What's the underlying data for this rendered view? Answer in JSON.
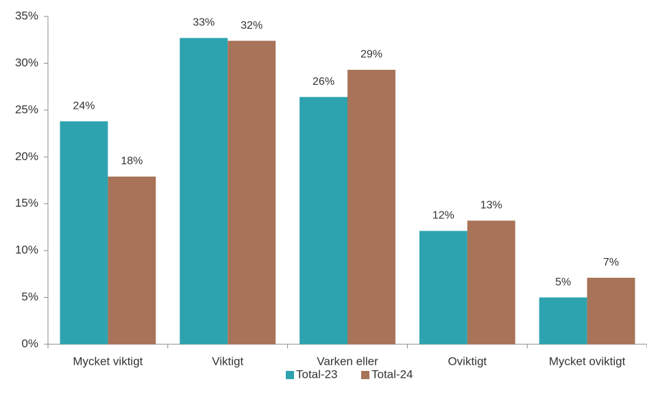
{
  "chart_data": {
    "type": "bar",
    "categories": [
      "Mycket viktigt",
      "Viktigt",
      "Varken eller",
      "Oviktigt",
      "Mycket oviktigt"
    ],
    "series": [
      {
        "name": "Total-23",
        "color": "#2ea3b0",
        "values": [
          23.8,
          32.7,
          26.4,
          12.1,
          5.0
        ],
        "value_labels": [
          "24%",
          "33%",
          "26%",
          "12%",
          "5%"
        ]
      },
      {
        "name": "Total-24",
        "color": "#a87358",
        "values": [
          17.9,
          32.4,
          29.3,
          13.2,
          7.1
        ],
        "value_labels": [
          "18%",
          "32%",
          "29%",
          "13%",
          "7%"
        ]
      }
    ],
    "ylim": [
      0,
      35
    ],
    "yticks": [
      {
        "value": 0,
        "label": "0%"
      },
      {
        "value": 5,
        "label": "5%"
      },
      {
        "value": 10,
        "label": "10%"
      },
      {
        "value": 15,
        "label": "15%"
      },
      {
        "value": 20,
        "label": "20%"
      },
      {
        "value": 25,
        "label": "25%"
      },
      {
        "value": 30,
        "label": "30%"
      },
      {
        "value": 35,
        "label": "35%"
      }
    ],
    "grid": false,
    "legend": "bottom"
  }
}
